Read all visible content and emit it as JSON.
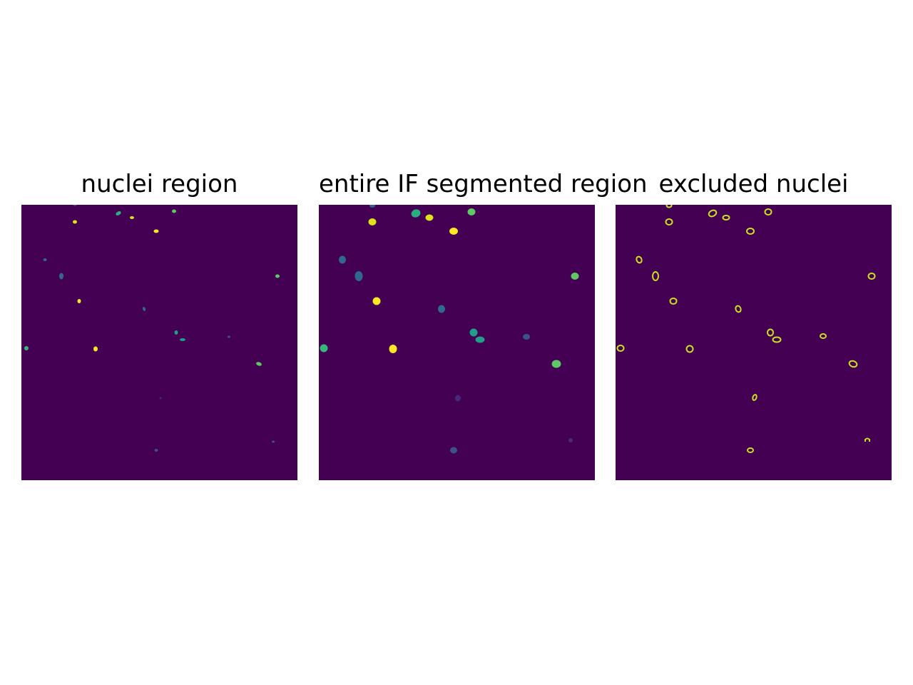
{
  "figure": {
    "background_color": "#440154",
    "panels": [
      {
        "id": "nuclei",
        "title": "nuclei region",
        "style": "filled"
      },
      {
        "id": "segmented",
        "title": "entire IF segmented region",
        "style": "filled"
      },
      {
        "id": "excluded",
        "title": "excluded nuclei",
        "style": "outline",
        "outline_color": "#c8e020"
      }
    ]
  }
}
